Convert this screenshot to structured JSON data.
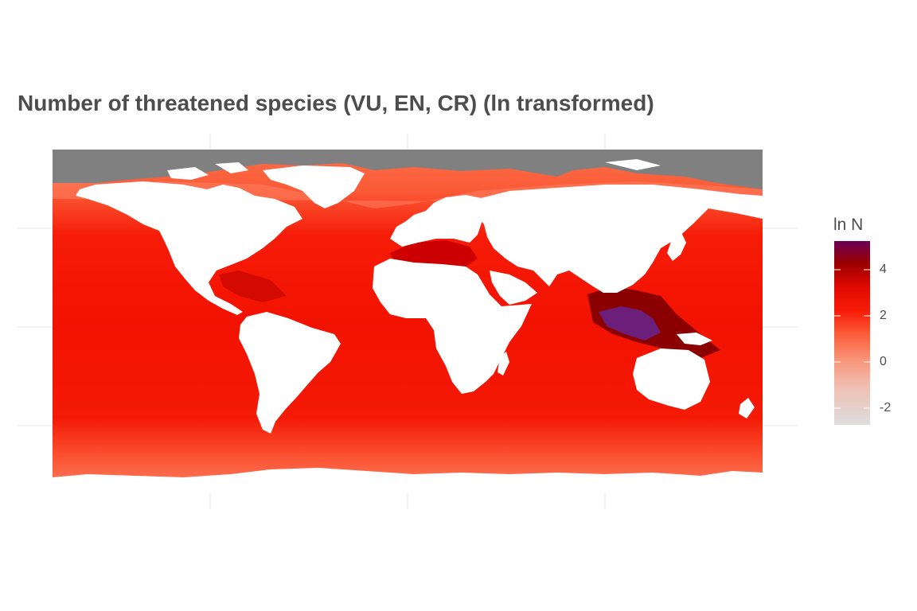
{
  "title": "Number of threatened species (VU, EN, CR) (ln transformed)",
  "legend": {
    "title": "ln N",
    "ticks": [
      {
        "value": 4,
        "label": "4"
      },
      {
        "value": 2,
        "label": "2"
      },
      {
        "value": 0,
        "label": "0"
      },
      {
        "value": -2,
        "label": "-2"
      }
    ],
    "range": [
      -2.7,
      5.2
    ]
  },
  "colors": {
    "background": "#ffffff",
    "land": "#ffffff",
    "no_data": "#808080",
    "grid": "#e6e6e6",
    "scale": [
      "#dddddd",
      "#f3b9a8",
      "#fb7a55",
      "#ff3b1e",
      "#f20f00",
      "#cc0000",
      "#8b0000",
      "#6b0057"
    ]
  },
  "map": {
    "projection": "equirectangular",
    "extent_lon": [
      -180,
      180
    ],
    "extent_lat": [
      -90,
      90
    ],
    "grid": true
  }
}
